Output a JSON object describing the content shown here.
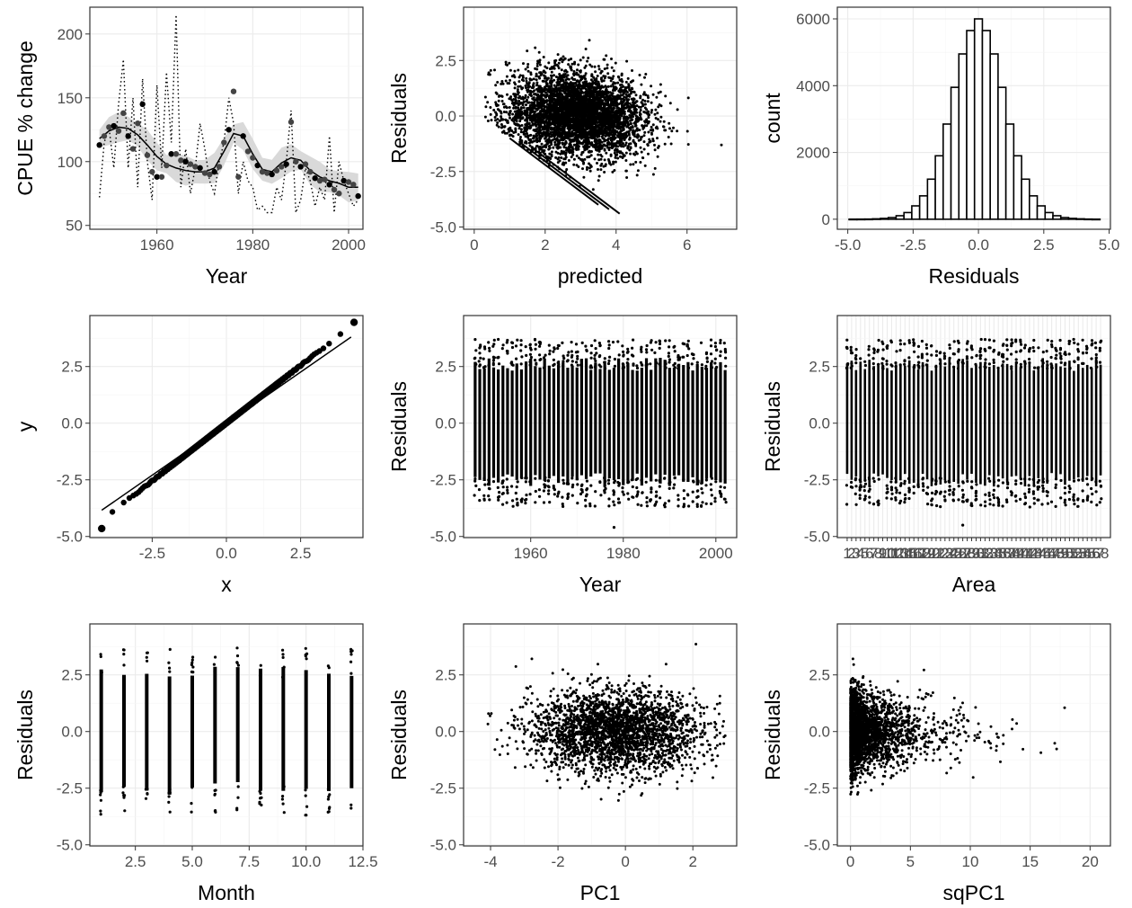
{
  "figure": {
    "panels": 9,
    "layout": "3x3 grid",
    "theme": "white background, light grey grid, dark grey panel border",
    "colors": {
      "points": "#000000",
      "ribbon": "#d9d9d9",
      "bars_fill": "#ffffff",
      "bars_stroke": "#000000",
      "grid": "#ebebeb",
      "frame": "#333333"
    }
  },
  "chart_data": [
    {
      "id": "cpue",
      "type": "line",
      "xlabel": "Year",
      "ylabel": "CPUE % change",
      "xlim": [
        1946,
        2003
      ],
      "ylim": [
        47,
        221
      ],
      "xticks": [
        "1960",
        "1980",
        "2000"
      ],
      "yticks": [
        "50",
        "100",
        "150",
        "200"
      ],
      "grid": true,
      "description": "annual index points, dotted raw index line, solid smoother with grey confidence band",
      "series": [
        {
          "style": "smoother",
          "x": [
            1948,
            1950,
            1952,
            1954,
            1956,
            1958,
            1960,
            1962,
            1964,
            1966,
            1968,
            1970,
            1972,
            1974,
            1976,
            1978,
            1980,
            1982,
            1984,
            1986,
            1988,
            1990,
            1992,
            1994,
            1996,
            1998,
            2000,
            2002
          ],
          "y": [
            118,
            124,
            127,
            126,
            121,
            113,
            104,
            98,
            95,
            93,
            92,
            92,
            95,
            108,
            122,
            120,
            106,
            94,
            92,
            99,
            103,
            101,
            93,
            88,
            85,
            83,
            80,
            80
          ]
        },
        {
          "style": "points",
          "x": [
            1948,
            1949,
            1950,
            1951,
            1952,
            1953,
            1954,
            1955,
            1956,
            1957,
            1958,
            1959,
            1960,
            1961,
            1962,
            1963,
            1964,
            1965,
            1966,
            1967,
            1968,
            1969,
            1970,
            1971,
            1972,
            1973,
            1974,
            1975,
            1976,
            1977,
            1978,
            1979,
            1980,
            1981,
            1982,
            1983,
            1984,
            1985,
            1986,
            1987,
            1988,
            1989,
            1990,
            1991,
            1992,
            1993,
            1994,
            1995,
            1996,
            1997,
            1998,
            1999,
            2000,
            2001,
            2002
          ],
          "y": [
            113,
            120,
            127,
            128,
            124,
            138,
            120,
            110,
            130,
            145,
            105,
            92,
            88,
            88,
            97,
            106,
            106,
            101,
            100,
            98,
            96,
            95,
            91,
            90,
            92,
            96,
            115,
            125,
            155,
            88,
            120,
            108,
            103,
            97,
            92,
            91,
            90,
            93,
            96,
            98,
            131,
            100,
            96,
            98,
            92,
            87,
            85,
            86,
            82,
            78,
            75,
            85,
            84,
            82,
            73
          ]
        },
        {
          "style": "dotted",
          "x": [
            1948,
            1949,
            1950,
            1951,
            1952,
            1953,
            1954,
            1955,
            1956,
            1957,
            1958,
            1959,
            1960,
            1961,
            1962,
            1963,
            1964,
            1965,
            1966,
            1967,
            1968,
            1969,
            1970,
            1971,
            1972,
            1973,
            1974,
            1975,
            1976,
            1977,
            1978,
            1979,
            1980,
            1981,
            1982,
            1983,
            1984,
            1985,
            1986,
            1987,
            1988,
            1989,
            1990,
            1991,
            1992,
            1993,
            1994,
            1995,
            1996,
            1997,
            1998,
            1999,
            2000,
            2001,
            2002
          ],
          "y": [
            72,
            115,
            127,
            95,
            145,
            180,
            95,
            150,
            80,
            165,
            100,
            70,
            160,
            95,
            170,
            115,
            215,
            80,
            110,
            75,
            95,
            130,
            110,
            85,
            75,
            100,
            115,
            150,
            130,
            75,
            100,
            85,
            80,
            62,
            65,
            60,
            60,
            80,
            70,
            100,
            140,
            60,
            70,
            95,
            85,
            65,
            80,
            70,
            120,
            60,
            100,
            85,
            75,
            65,
            70
          ]
        }
      ]
    },
    {
      "id": "resid_pred",
      "type": "scatter",
      "xlabel": "predicted",
      "ylabel": "Residuals",
      "xlim": [
        -0.3,
        7.4
      ],
      "ylim": [
        -5.1,
        4.9
      ],
      "xticks": [
        "0",
        "2",
        "4",
        "6"
      ],
      "yticks": [
        "-5.0",
        "-2.5",
        "0.0",
        "2.5"
      ],
      "grid": true,
      "points_description": "dense elliptical cloud of residuals centred near predicted 3, residual 0"
    },
    {
      "id": "hist",
      "type": "bar",
      "xlabel": "Residuals",
      "ylabel": "count",
      "xlim": [
        -5.4,
        5.05
      ],
      "ylim": [
        -300,
        6350
      ],
      "xticks": [
        "-5.0",
        "-2.5",
        "0.0",
        "2.5",
        "5.0"
      ],
      "yticks": [
        "0",
        "2000",
        "4000",
        "6000"
      ],
      "grid": true,
      "bin_width": 0.3,
      "bin_centers": [
        -4.8,
        -4.5,
        -4.2,
        -3.9,
        -3.6,
        -3.3,
        -3.0,
        -2.7,
        -2.4,
        -2.1,
        -1.8,
        -1.5,
        -1.2,
        -0.9,
        -0.6,
        -0.3,
        0.0,
        0.3,
        0.6,
        0.9,
        1.2,
        1.5,
        1.8,
        2.1,
        2.4,
        2.7,
        3.0,
        3.3,
        3.6,
        3.9,
        4.2,
        4.5
      ],
      "values": [
        2,
        3,
        5,
        12,
        25,
        50,
        105,
        200,
        400,
        700,
        1200,
        1900,
        2850,
        3950,
        4950,
        5650,
        6000,
        5650,
        4950,
        3950,
        2850,
        1900,
        1200,
        700,
        400,
        200,
        105,
        50,
        25,
        12,
        5,
        2
      ]
    },
    {
      "id": "qq",
      "type": "scatter",
      "xlabel": "x",
      "ylabel": "y",
      "xlim": [
        -4.6,
        4.6
      ],
      "ylim": [
        -5.05,
        4.75
      ],
      "xticks": [
        "-2.5",
        "0.0",
        "2.5"
      ],
      "yticks": [
        "-5.0",
        "-2.5",
        "0.0",
        "2.5"
      ],
      "grid": true,
      "points_description": "normal Q-Q plot: sample quantiles along the reference line from about (-4.2, -4.6) to (4.3, 4.5)",
      "reference_line": {
        "intercept": -0.02,
        "slope": 0.91
      }
    },
    {
      "id": "resid_year",
      "type": "scatter",
      "xlabel": "Year",
      "ylabel": "Residuals",
      "xlim": [
        1945.5,
        2004.5
      ],
      "ylim": [
        -5.05,
        4.75
      ],
      "xticks": [
        "1960",
        "1980",
        "2000"
      ],
      "yticks": [
        "-5.0",
        "-2.5",
        "0.0",
        "2.5"
      ],
      "grid": true,
      "points_description": "vertical strips of residuals per year from 1948 to 2002, mostly between -2.5 and 2.5"
    },
    {
      "id": "resid_area",
      "type": "scatter",
      "xlabel": "Area",
      "ylabel": "Residuals",
      "ylim": [
        -5.05,
        4.75
      ],
      "yticks": [
        "-5.0",
        "-2.5",
        "0.0",
        "2.5"
      ],
      "grid": true,
      "points_description": "vertical strips of residuals for about 58 areas; overlapping area tick labels"
    },
    {
      "id": "resid_month",
      "type": "scatter",
      "xlabel": "Month",
      "ylabel": "Residuals",
      "xlim": [
        0.5,
        12.5
      ],
      "ylim": [
        -5.05,
        4.75
      ],
      "xticks": [
        "2.5",
        "5.0",
        "7.5",
        "10.0",
        "12.5"
      ],
      "yticks": [
        "-5.0",
        "-2.5",
        "0.0",
        "2.5"
      ],
      "grid": true,
      "months": [
        1,
        2,
        3,
        4,
        5,
        6,
        7,
        8,
        9,
        10,
        11,
        12
      ]
    },
    {
      "id": "resid_pc1",
      "type": "scatter",
      "xlabel": "PC1",
      "ylabel": "Residuals",
      "xlim": [
        -4.8,
        3.3
      ],
      "ylim": [
        -5.05,
        4.75
      ],
      "xticks": [
        "-4",
        "-2",
        "0",
        "2"
      ],
      "yticks": [
        "-5.0",
        "-2.5",
        "0.0",
        "2.5"
      ],
      "grid": true,
      "points_description": "dense horizontal cloud between PC1 -4 and 3"
    },
    {
      "id": "resid_sqpc1",
      "type": "scatter",
      "xlabel": "sqPC1",
      "ylabel": "Residuals",
      "xlim": [
        -1.1,
        21.7
      ],
      "ylim": [
        -5.05,
        4.75
      ],
      "xticks": [
        "0",
        "5",
        "10",
        "15",
        "20"
      ],
      "yticks": [
        "-5.0",
        "-2.5",
        "0.0",
        "2.5"
      ],
      "grid": true,
      "points_description": "dense cloud near sqPC1 0 thinning toward 21"
    }
  ]
}
